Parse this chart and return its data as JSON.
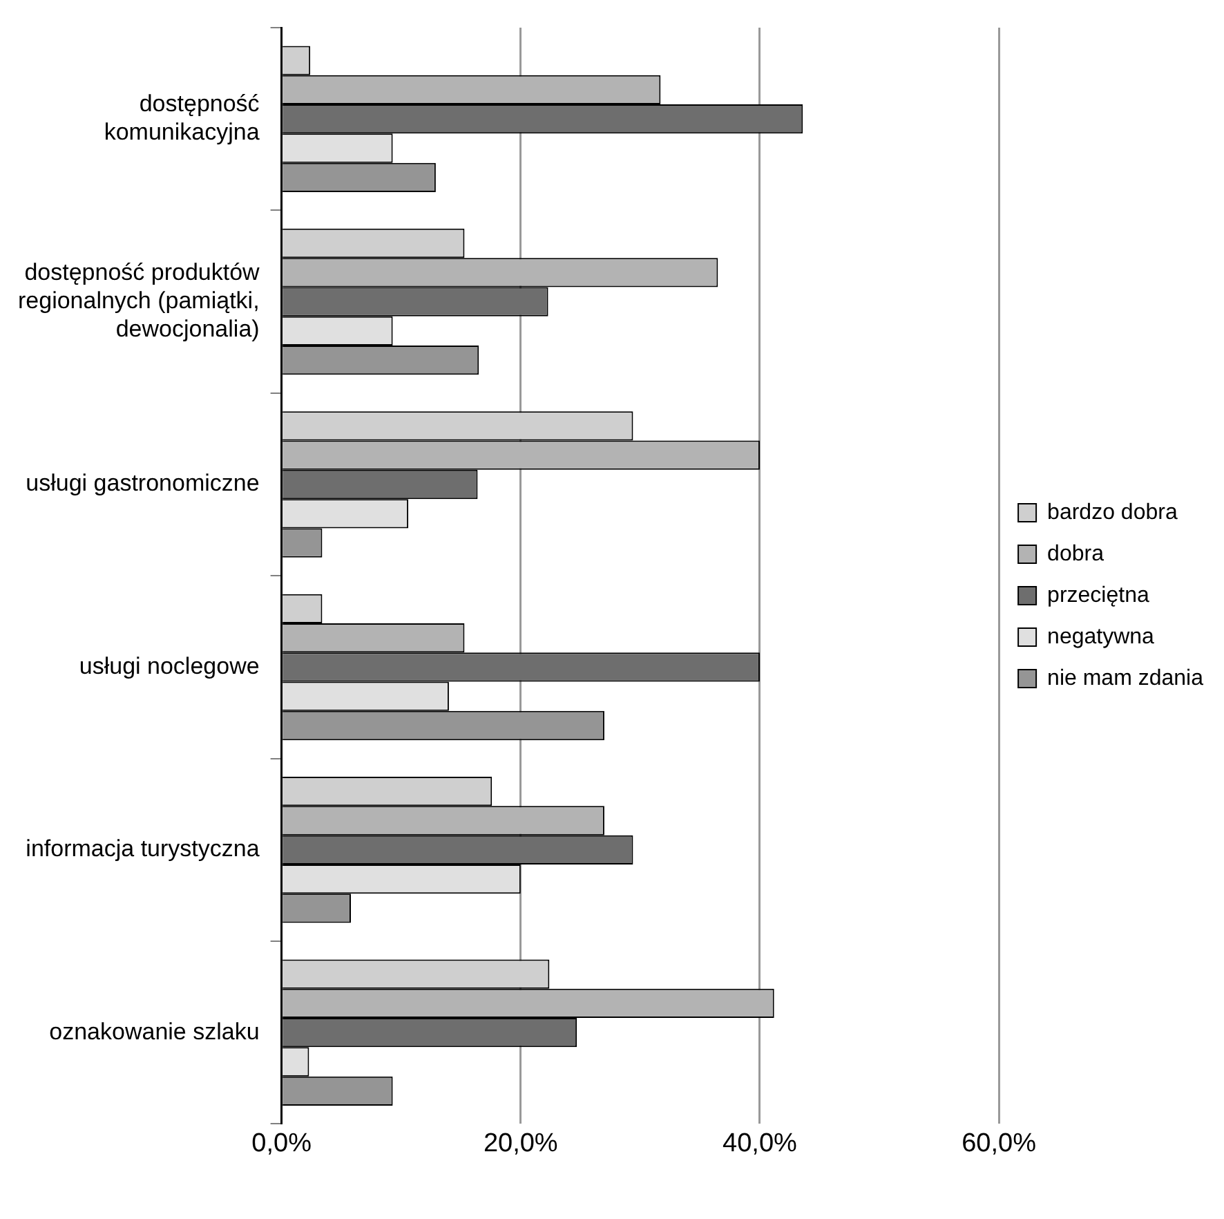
{
  "chart_data": {
    "type": "bar",
    "orientation": "horizontal",
    "categories": [
      "dostępność komunikacyjna",
      "dostępność produktów regionalnych (pamiątki, dewocjonalia)",
      "usługi gastronomiczne",
      "usługi noclegowe",
      "informacja turystyczna",
      "oznakowanie szlaku"
    ],
    "series": [
      {
        "name": "bardzo dobra",
        "color": "#cfcfcf",
        "values": [
          2.4,
          15.3,
          29.4,
          3.4,
          17.6,
          22.4
        ]
      },
      {
        "name": "dobra",
        "color": "#b3b3b3",
        "values": [
          31.7,
          36.5,
          40,
          15.3,
          27,
          41.2
        ]
      },
      {
        "name": "przeciętna",
        "color": "#6e6e6e",
        "values": [
          43.6,
          22.3,
          16.4,
          40,
          29.4,
          24.7
        ]
      },
      {
        "name": "negatywna",
        "color": "#e0e0e0",
        "values": [
          9.3,
          9.3,
          10.6,
          14,
          20,
          2.3
        ]
      },
      {
        "name": "nie mam zdania",
        "color": "#959595",
        "values": [
          12.9,
          16.5,
          3.4,
          27,
          5.8,
          9.3
        ]
      }
    ],
    "xlim": [
      0,
      60
    ],
    "xticks": [
      {
        "value": 0,
        "label": "0,0%"
      },
      {
        "value": 20,
        "label": "20,0%"
      },
      {
        "value": 40,
        "label": "40,0%"
      },
      {
        "value": 60,
        "label": "60,0%"
      }
    ],
    "grid": "x",
    "legend": "right"
  }
}
